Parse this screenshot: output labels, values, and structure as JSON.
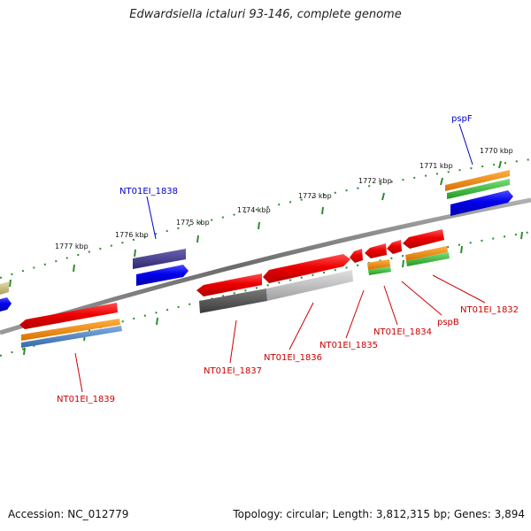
{
  "title": "Edwardsiella ictaluri 93-146, complete genome",
  "footer": {
    "accession": "Accession: NC_012779",
    "summary": "Topology: circular; Length: 3,812,315 bp; Genes: 3,894"
  },
  "ticks": [
    "1770 kbp",
    "1771 kbp",
    "1772 kbp",
    "1773 kbp",
    "1774 kbp",
    "1775 kbp",
    "1776 kbp",
    "1777 kbp"
  ],
  "gene_labels": [
    {
      "name": "pspF",
      "color": "#0000cc"
    },
    {
      "name": "NT01EI_1838",
      "color": "#0000cc"
    },
    {
      "name": "NT01EI_1832",
      "color": "#cc0000"
    },
    {
      "name": "pspB",
      "color": "#cc0000"
    },
    {
      "name": "NT01EI_1834",
      "color": "#cc0000"
    },
    {
      "name": "NT01EI_1835",
      "color": "#cc0000"
    },
    {
      "name": "NT01EI_1836",
      "color": "#cc0000"
    },
    {
      "name": "NT01EI_1837",
      "color": "#cc0000"
    },
    {
      "name": "NT01EI_1839",
      "color": "#cc0000"
    }
  ],
  "colors": {
    "backbone": "#808080",
    "tick": "#2e8b2e",
    "cds_red": "#e00000",
    "gene_blue": "#0000ee",
    "orange": "#f08c00",
    "green": "#33bb33",
    "purple": "#443c8c",
    "steelblue": "#4d84c4",
    "darkgray": "#555555",
    "lightgray": "#bbbbbb",
    "khaki": "#c8c088"
  }
}
